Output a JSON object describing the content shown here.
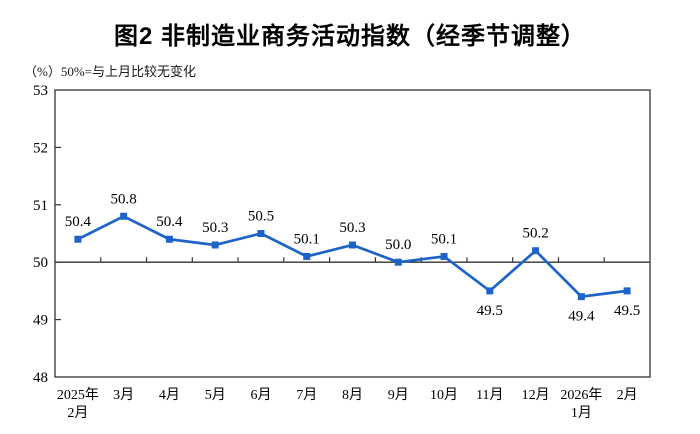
{
  "title": "图2 非制造业商务活动指数（经季节调整）",
  "subtitle": "（%）50%=与上月比较无变化",
  "chart_data": {
    "type": "line",
    "categories": [
      [
        "2025年",
        "2月"
      ],
      [
        "3月"
      ],
      [
        "4月"
      ],
      [
        "5月"
      ],
      [
        "6月"
      ],
      [
        "7月"
      ],
      [
        "8月"
      ],
      [
        "9月"
      ],
      [
        "10月"
      ],
      [
        "11月"
      ],
      [
        "12月"
      ],
      [
        "2026年",
        "1月"
      ],
      [
        "2月"
      ]
    ],
    "values": [
      50.4,
      50.8,
      50.4,
      50.3,
      50.5,
      50.1,
      50.3,
      50.0,
      50.1,
      49.5,
      50.2,
      49.4,
      49.5
    ],
    "ylim": [
      48,
      53
    ],
    "yticks": [
      48,
      49,
      50,
      51,
      52,
      53
    ],
    "baseline": 50,
    "unit_label": "%",
    "line_color": "#1E64C8",
    "axis_color": "#333333",
    "marker": "square",
    "legend_position": "none",
    "grid": "off",
    "xlabel": "",
    "ylabel": "%"
  }
}
